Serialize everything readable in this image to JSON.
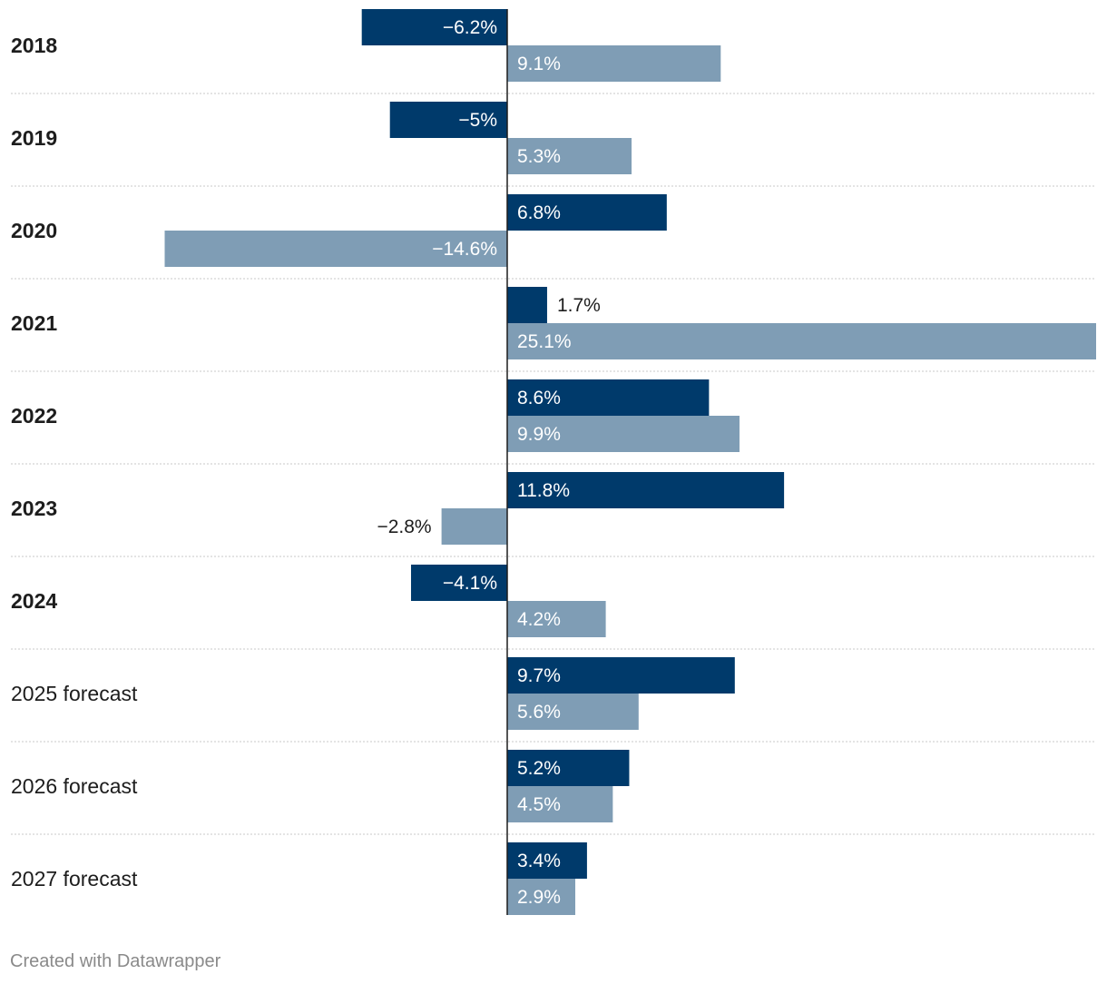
{
  "chart_data": {
    "type": "bar",
    "orientation": "horizontal",
    "categories": [
      "2018",
      "2019",
      "2020",
      "2021",
      "2022",
      "2023",
      "2024",
      "2025 forecast",
      "2026 forecast",
      "2027 forecast"
    ],
    "bold_categories": [
      "2018",
      "2019",
      "2020",
      "2021",
      "2022",
      "2023",
      "2024"
    ],
    "series": [
      {
        "name": "series-1",
        "color": "#003a6b",
        "values": [
          -6.2,
          -5,
          6.8,
          1.7,
          8.6,
          11.8,
          -4.1,
          9.7,
          5.2,
          3.4
        ],
        "labels": [
          "−6.2%",
          "−5%",
          "6.8%",
          "1.7%",
          "8.6%",
          "11.8%",
          "−4.1%",
          "9.7%",
          "5.2%",
          "3.4%"
        ]
      },
      {
        "name": "series-2",
        "color": "#7f9db5",
        "values": [
          9.1,
          5.3,
          -14.6,
          25.1,
          9.9,
          -2.8,
          4.2,
          5.6,
          4.5,
          2.9
        ],
        "labels": [
          "9.1%",
          "5.3%",
          "−14.6%",
          "25.1%",
          "9.9%",
          "−2.8%",
          "4.2%",
          "5.6%",
          "4.5%",
          "2.9%"
        ]
      }
    ],
    "xlim": [
      -14.6,
      25.1
    ],
    "title": "",
    "xlabel": "",
    "ylabel": ""
  },
  "footer": {
    "credit": "Created with Datawrapper"
  }
}
